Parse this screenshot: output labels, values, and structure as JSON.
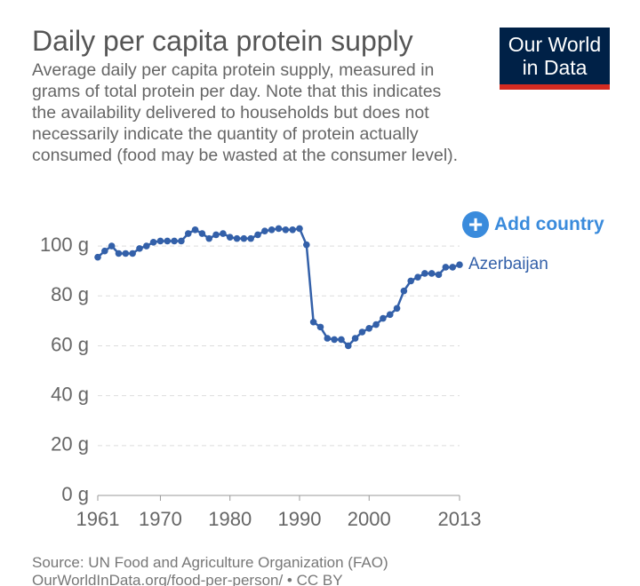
{
  "chart_data": {
    "type": "line",
    "title": "Daily per capita protein supply",
    "subtitle": "Average daily per capita protein supply, measured in grams of total protein per day. Note that this indicates the availability delivered to households but does not necessarily indicate the quantity of protein actually consumed (food may be wasted at the consumer level).",
    "logo": [
      "Our World",
      "in Data"
    ],
    "add_country": "Add country",
    "source": "Source: UN Food and Agriculture Organization (FAO)",
    "url": "OurWorldInData.org/food-per-person/ • CC BY",
    "x": [
      1961,
      1962,
      1963,
      1964,
      1965,
      1966,
      1967,
      1968,
      1969,
      1970,
      1971,
      1972,
      1973,
      1974,
      1975,
      1976,
      1977,
      1978,
      1979,
      1980,
      1981,
      1982,
      1983,
      1984,
      1985,
      1986,
      1987,
      1988,
      1989,
      1990,
      1991,
      1992,
      1993,
      1994,
      1995,
      1996,
      1997,
      1998,
      1999,
      2000,
      2001,
      2002,
      2003,
      2004,
      2005,
      2006,
      2007,
      2008,
      2009,
      2010,
      2011,
      2012,
      2013
    ],
    "series": [
      {
        "name": "Azerbaijan",
        "color": "#3360a9",
        "values": [
          95.5,
          98,
          100,
          97,
          97,
          97,
          99,
          100,
          101.5,
          102,
          102,
          102,
          102,
          105,
          106.5,
          105,
          103,
          104.5,
          105,
          103.5,
          103,
          103,
          103,
          104.5,
          106,
          106.5,
          107,
          106.5,
          106.5,
          107,
          100.5,
          69.5,
          67.5,
          63,
          62.5,
          62.5,
          60,
          63,
          65.5,
          67,
          68.5,
          71,
          72.5,
          75,
          82,
          86,
          87.5,
          89,
          89,
          88.5,
          91.5,
          91.5,
          92.5
        ]
      }
    ],
    "xlim": [
      1961,
      2013
    ],
    "xticks": [
      1961,
      1970,
      1980,
      1990,
      2000,
      2013
    ],
    "ylim": [
      0,
      107
    ],
    "yticks": [
      {
        "value": 0,
        "label": "0 g"
      },
      {
        "value": 20,
        "label": "20 g"
      },
      {
        "value": 40,
        "label": "40 g"
      },
      {
        "value": 60,
        "label": "60 g"
      },
      {
        "value": 80,
        "label": "80 g"
      },
      {
        "value": 100,
        "label": "100 g"
      }
    ],
    "grid": true
  }
}
